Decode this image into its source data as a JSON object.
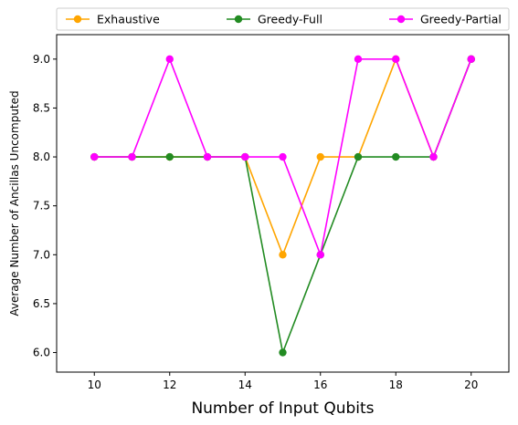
{
  "chart_data": {
    "type": "line",
    "title": "",
    "xlabel": "Number of Input Qubits",
    "ylabel": "Average Number of Ancillas Uncomputed",
    "x": [
      10,
      11,
      12,
      13,
      14,
      15,
      16,
      17,
      18,
      19,
      20
    ],
    "xlim": [
      9,
      21
    ],
    "ylim": [
      5.8,
      9.25
    ],
    "xticks": [
      10,
      12,
      14,
      16,
      18,
      20
    ],
    "xtick_labels": [
      "10",
      "12",
      "14",
      "16",
      "18",
      "20"
    ],
    "yticks": [
      6.0,
      6.5,
      7.0,
      7.5,
      8.0,
      8.5,
      9.0
    ],
    "ytick_labels": [
      "6.0",
      "6.5",
      "7.0",
      "7.5",
      "8.0",
      "8.5",
      "9.0"
    ],
    "grid": false,
    "legend_position": "top",
    "series": [
      {
        "name": "Exhaustive",
        "color": "#FFA500",
        "values": [
          8,
          8,
          8,
          8,
          8,
          7,
          8,
          8,
          9,
          8,
          9
        ]
      },
      {
        "name": "Greedy-Full",
        "color": "#228B22",
        "values": [
          8,
          8,
          8,
          8,
          8,
          6,
          7,
          8,
          8,
          8,
          9
        ]
      },
      {
        "name": "Greedy-Partial",
        "color": "#FF00FF",
        "values": [
          8,
          8,
          9,
          8,
          8,
          8,
          7,
          9,
          9,
          8,
          9
        ]
      }
    ]
  }
}
